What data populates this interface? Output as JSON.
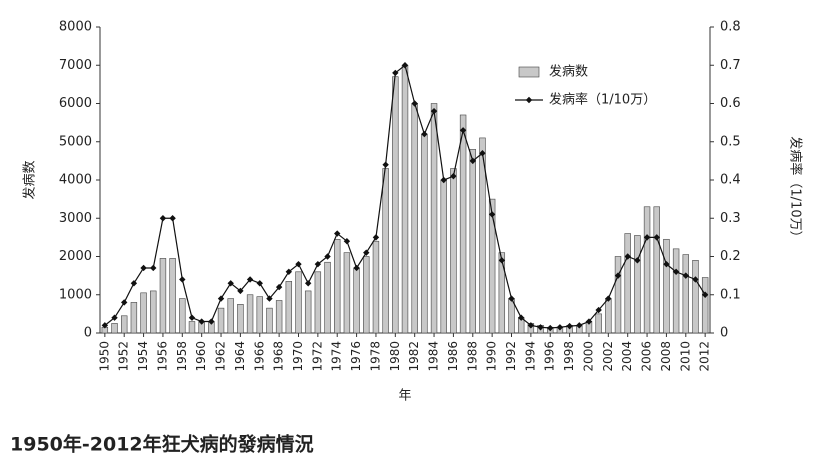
{
  "chart_data": {
    "type": "bar_line",
    "categories": [
      "1950",
      null,
      "1952",
      null,
      "1954",
      null,
      "1956",
      null,
      "1958",
      null,
      "1960",
      null,
      "1962",
      null,
      "1964",
      null,
      "1966",
      null,
      "1968",
      null,
      "1970",
      null,
      "1972",
      null,
      "1974",
      null,
      "1976",
      null,
      "1978",
      null,
      "1980",
      null,
      "1982",
      null,
      "1984",
      null,
      "1986",
      null,
      "1988",
      null,
      "1990",
      null,
      "1992",
      null,
      "1994",
      null,
      "1996",
      null,
      "1998",
      null,
      "2000",
      null,
      "2002",
      null,
      "2004",
      null,
      "2006",
      null,
      "2008",
      null,
      "2010",
      null,
      "2012"
    ],
    "series": [
      {
        "name": "发病数",
        "color": "#c8c8c8",
        "values": [
          150,
          250,
          450,
          800,
          1050,
          1100,
          1950,
          1950,
          900,
          300,
          300,
          300,
          650,
          900,
          750,
          1000,
          950,
          650,
          850,
          1350,
          1600,
          1100,
          1600,
          1850,
          2450,
          2100,
          1700,
          2000,
          2400,
          4300,
          6700,
          7000,
          6000,
          5200,
          6000,
          4000,
          4300,
          5700,
          4800,
          5100,
          3500,
          2100,
          900,
          400,
          250,
          200,
          150,
          150,
          200,
          200,
          300,
          500,
          900,
          2000,
          2600,
          2550,
          3300,
          3300,
          2450,
          2200,
          2050,
          1900,
          1450
        ]
      },
      {
        "name": "发病率（1/10万）",
        "color": "#111111",
        "axis": "y2",
        "values": [
          0.02,
          0.04,
          0.08,
          0.13,
          0.17,
          0.17,
          0.3,
          0.3,
          0.14,
          0.04,
          0.03,
          0.03,
          0.09,
          0.13,
          0.11,
          0.14,
          0.13,
          0.09,
          0.12,
          0.16,
          0.18,
          0.13,
          0.18,
          0.2,
          0.26,
          0.24,
          0.17,
          0.21,
          0.25,
          0.44,
          0.68,
          0.7,
          0.6,
          0.52,
          0.58,
          0.4,
          0.41,
          0.53,
          0.45,
          0.47,
          0.31,
          0.19,
          0.09,
          0.04,
          0.02,
          0.015,
          0.013,
          0.015,
          0.018,
          0.02,
          0.03,
          0.06,
          0.09,
          0.15,
          0.2,
          0.19,
          0.25,
          0.25,
          0.18,
          0.16,
          0.15,
          0.14,
          0.1
        ]
      }
    ],
    "xlabel": "年",
    "ylabel": "发病数",
    "y2label": "发病率（1/10万）",
    "ylim": [
      0,
      8000
    ],
    "yticks": [
      0,
      1000,
      2000,
      3000,
      4000,
      5000,
      6000,
      7000,
      8000
    ],
    "y2lim": [
      0,
      0.8
    ],
    "y2ticks": [
      0,
      0.1,
      0.2,
      0.3,
      0.4,
      0.5,
      0.6,
      0.7,
      0.8
    ]
  },
  "caption": "1950年-2012年狂犬病的發病情況"
}
